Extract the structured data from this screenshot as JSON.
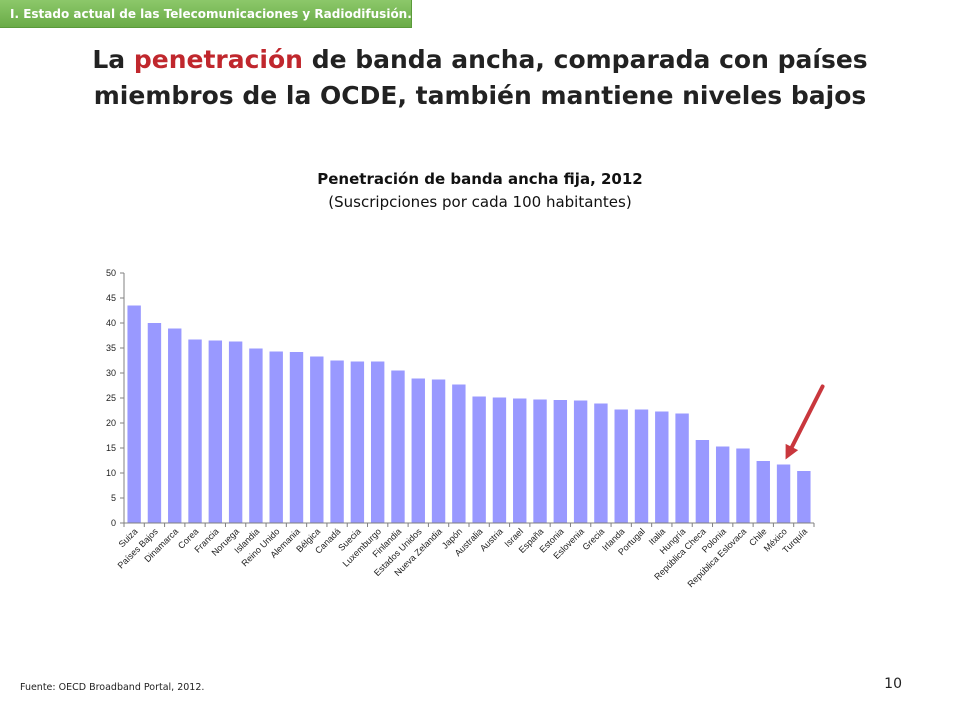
{
  "header": {
    "section_label": "I. Estado actual de las Telecomunicaciones y Radiodifusión."
  },
  "slide": {
    "title_part1": "La",
    "title_highlight": "penetración",
    "title_part2": "de banda ancha, comparada con países miembros de la OCDE, también mantiene niveles bajos",
    "highlight_color": "#c0272d"
  },
  "chart_data": {
    "type": "bar",
    "title": "Penetración de banda ancha fija, 2012",
    "subtitle": "(Suscripciones por cada 100 habitantes)",
    "categories": [
      "Suiza",
      "Países Bajos",
      "Dinamarca",
      "Corea",
      "Francia",
      "Noruega",
      "Islandia",
      "Reino Unido",
      "Alemania",
      "Bélgica",
      "Canadá",
      "Suecia",
      "Luxemburgo",
      "Finlandia",
      "Estados Unidos",
      "Nueva Zelandia",
      "Japón",
      "Australia",
      "Austria",
      "Israel",
      "España",
      "Estonia",
      "Eslovenia",
      "Grecia",
      "Irlanda",
      "Portugal",
      "Italia",
      "Hungría",
      "República Checa",
      "Polonia",
      "República Eslovaca",
      "Chile",
      "México",
      "Turquía"
    ],
    "values": [
      43.5,
      40.0,
      38.9,
      36.7,
      36.5,
      36.3,
      34.9,
      34.3,
      34.2,
      33.3,
      32.5,
      32.3,
      32.3,
      30.5,
      28.9,
      28.7,
      27.7,
      25.3,
      25.1,
      24.9,
      24.7,
      24.6,
      24.5,
      23.9,
      22.7,
      22.7,
      22.3,
      21.9,
      16.6,
      15.3,
      14.9,
      12.4,
      11.7,
      10.4
    ],
    "ylim": [
      0,
      50
    ],
    "yticks": [
      0,
      5,
      10,
      15,
      20,
      25,
      30,
      35,
      40,
      45,
      50
    ],
    "bar_color": "#9999ff",
    "grid": false,
    "highlight_category": "México",
    "arrow_color": "#c9373d"
  },
  "footer": {
    "source": "Fuente: OECD Broadband Portal, 2012.",
    "page_number": "10"
  }
}
